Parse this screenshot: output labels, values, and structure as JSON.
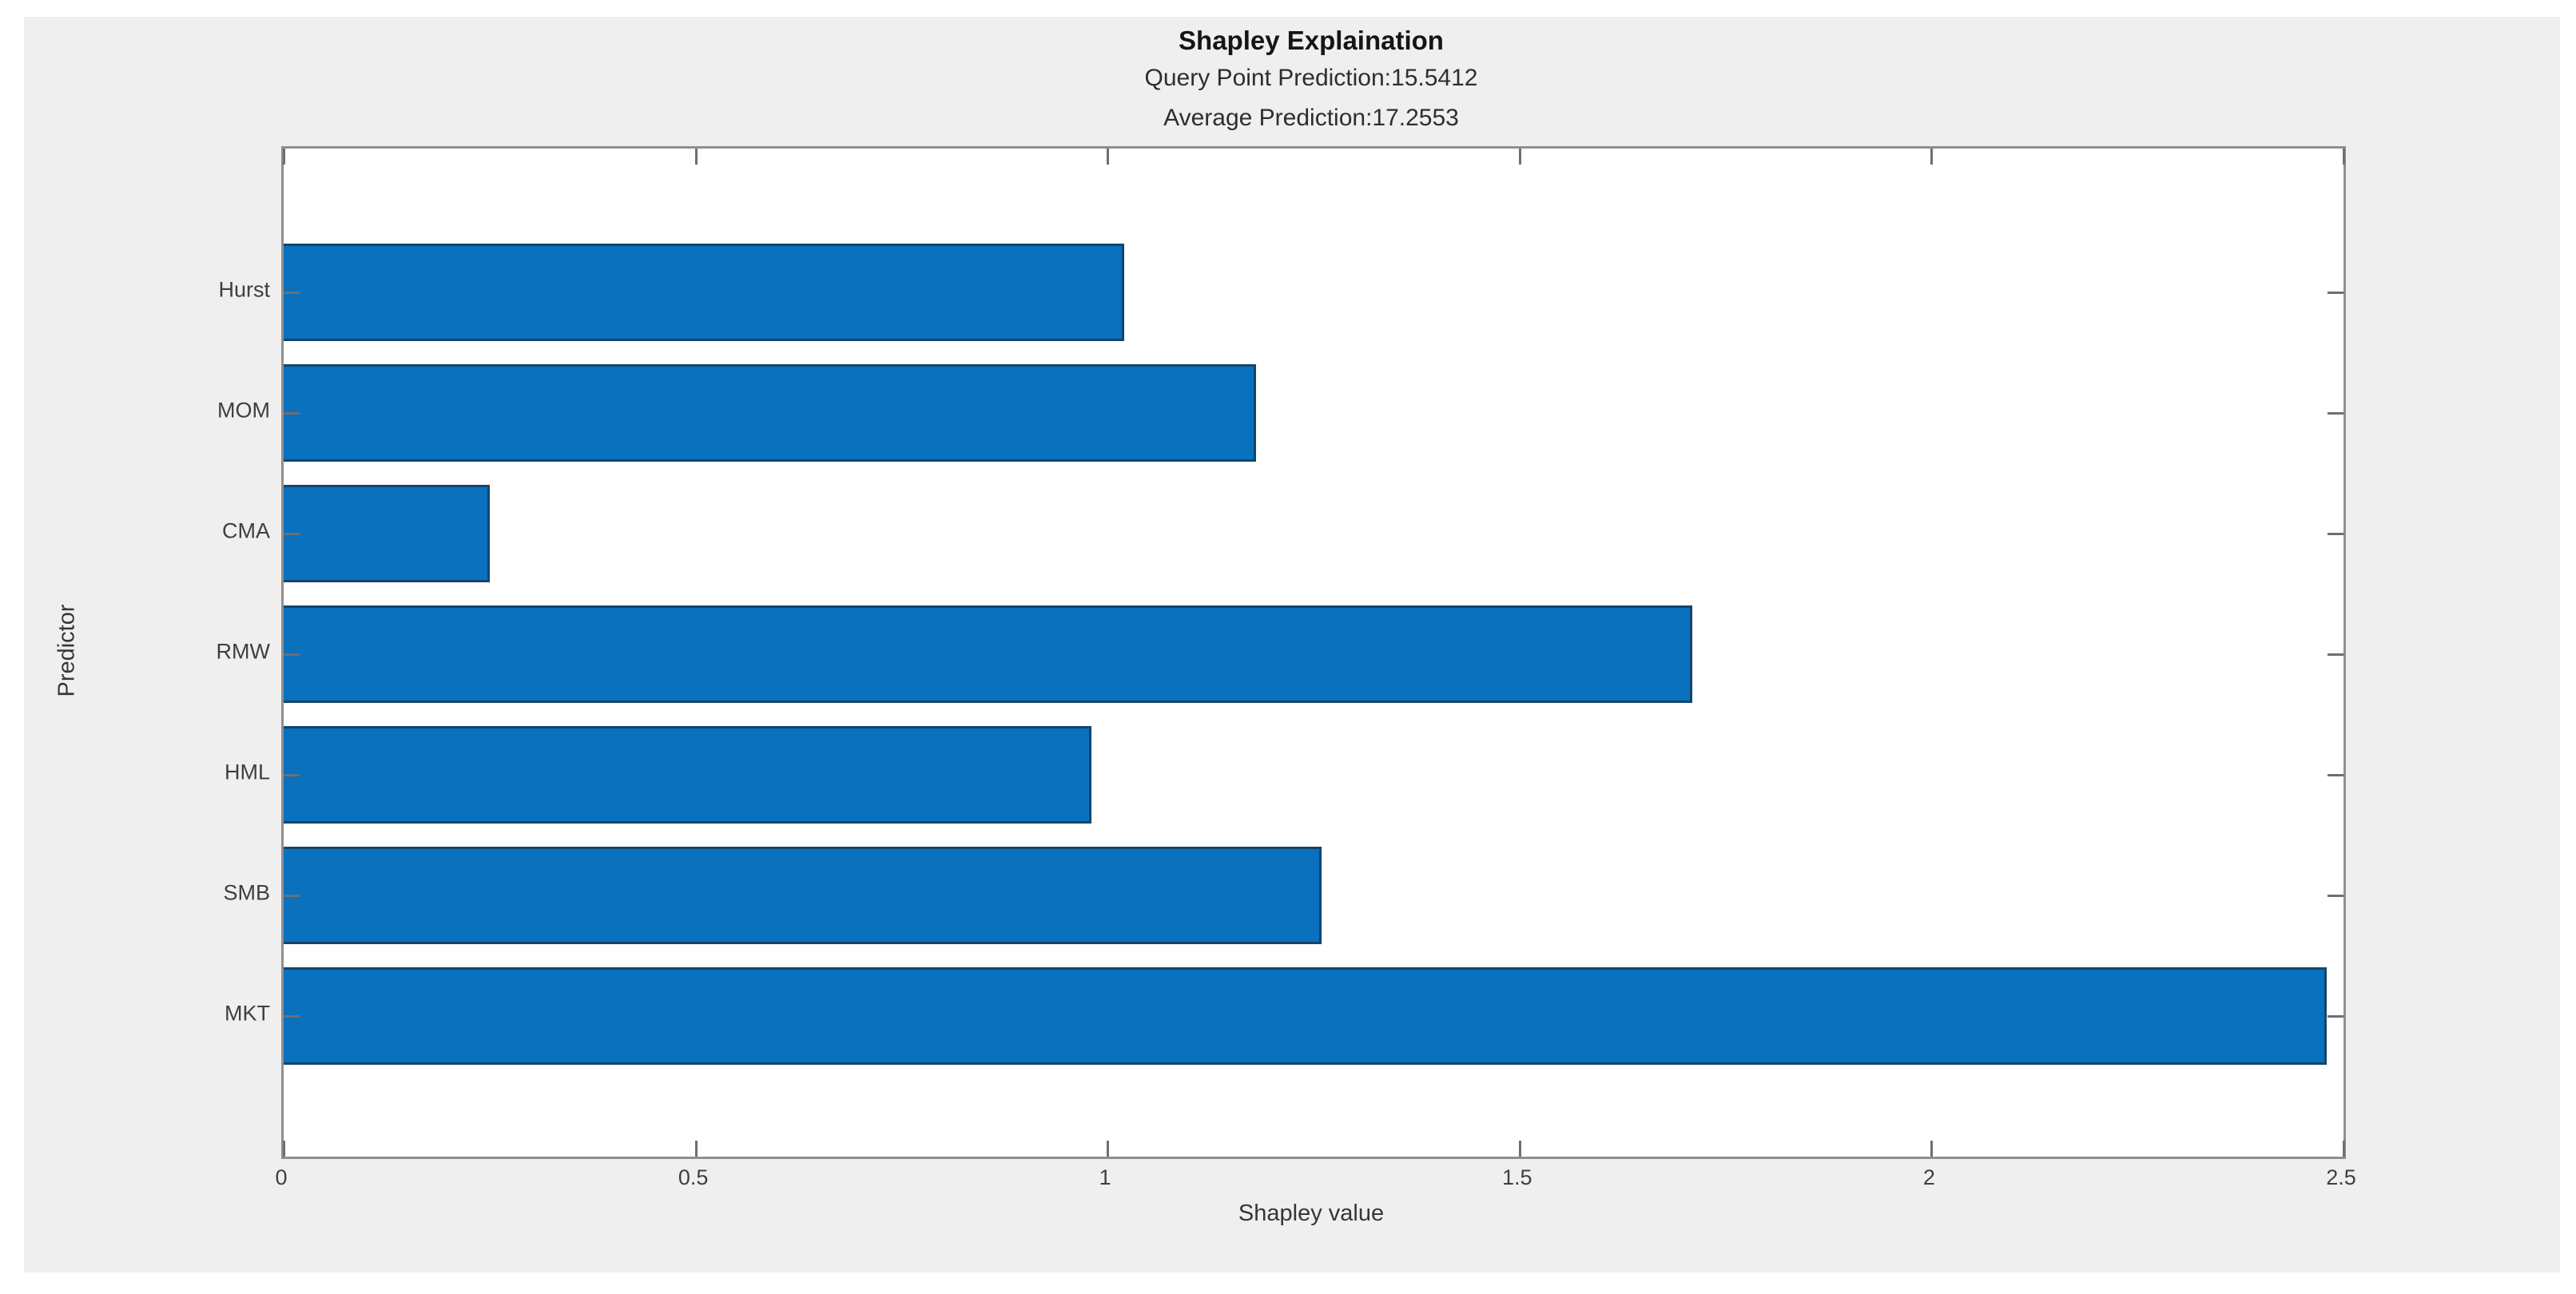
{
  "titles": {
    "title": "Shapley Explaination",
    "subtitle1": "Query Point Prediction:15.5412",
    "subtitle2": "Average Prediction:17.2553"
  },
  "chart_data": {
    "type": "bar",
    "orientation": "horizontal",
    "title": "Shapley Explaination",
    "subtitles": [
      "Query Point Prediction:15.5412",
      "Average Prediction:17.2553"
    ],
    "categories_top_to_bottom": [
      "Hurst",
      "MOM",
      "CMA",
      "RMW",
      "HML",
      "SMB",
      "MKT"
    ],
    "values": [
      1.02,
      1.18,
      0.25,
      1.71,
      0.98,
      1.26,
      2.48
    ],
    "xlabel": "Shapley value",
    "ylabel": "Predictor",
    "xlim": [
      0,
      2.5
    ],
    "x_ticks": [
      0,
      0.5,
      1,
      1.5,
      2,
      2.5
    ],
    "x_tick_labels": [
      "0",
      "0.5",
      "1",
      "1.5",
      "2",
      "2.5"
    ],
    "grid": false,
    "bar_color": "#0971be",
    "bar_edge_color": "#14456b",
    "figure_background": "#efefef",
    "plot_background": "#ffffff",
    "axis_color": "#8f8f8f"
  }
}
